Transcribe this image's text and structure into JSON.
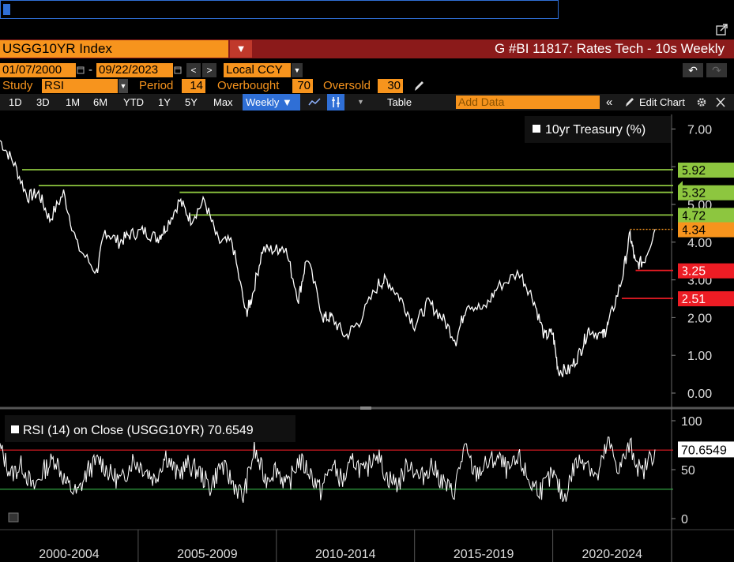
{
  "command_line": {
    "value": ""
  },
  "header": {
    "ticker": "USGG10YR Index",
    "title": "G #BI 11817: Rates Tech - 10s Weekly",
    "start_date": "01/07/2000",
    "end_date": "09/22/2023",
    "date_sep": "-",
    "currency": "Local CCY"
  },
  "study_row": {
    "study_label": "Study",
    "study_value": "RSI",
    "period_label": "Period",
    "period_value": "14",
    "overbought_label": "Overbought",
    "overbought_value": "70",
    "oversold_label": "Oversold",
    "oversold_value": "30"
  },
  "toolbar": {
    "ranges": [
      "1D",
      "3D",
      "1M",
      "6M",
      "YTD",
      "1Y",
      "5Y",
      "Max"
    ],
    "frequency": "Weekly ▼",
    "table_label": "Table",
    "add_data_placeholder": "Add Data",
    "edit_chart_label": "Edit Chart"
  },
  "icons": {
    "popout": "popout-icon",
    "undo": "undo-icon",
    "redo": "redo-icon",
    "pencil": "pencil-icon",
    "settings": "gear-icon",
    "line_type": "line-chart-icon",
    "crosshair": "crosshair-icon"
  },
  "colors": {
    "brand_orange": "#f7941d",
    "title_bar": "#8b1a1a",
    "resistance": "#8dc63f",
    "support": "#ed1c24",
    "price_line": "#ffffff",
    "rsi_overbought": "#ed1c24",
    "rsi_oversold": "#39b54a"
  },
  "chart_data": [
    {
      "type": "line",
      "legend": [
        "10yr Treasury (%)"
      ],
      "legend_position": "top-right",
      "ylim": [
        0,
        7.5
      ],
      "y_ticks": [
        "0.00",
        "1.00",
        "2.00",
        "3.00",
        "4.00",
        "5.00",
        "6.00",
        "7.00"
      ],
      "x_labels": [
        "2000-2004",
        "2005-2009",
        "2010-2014",
        "2015-2019",
        "2020-2024"
      ],
      "series": [
        {
          "name": "10yr Treasury (%)",
          "x": [
            2000.0,
            2000.5,
            2001.0,
            2001.4,
            2001.8,
            2002.3,
            2002.8,
            2003.5,
            2003.8,
            2004.3,
            2004.7,
            2005.2,
            2005.7,
            2006.0,
            2006.5,
            2006.9,
            2007.4,
            2007.9,
            2008.4,
            2008.9,
            2009.1,
            2009.5,
            2010.0,
            2010.3,
            2010.8,
            2011.1,
            2011.7,
            2012.0,
            2012.5,
            2013.0,
            2013.7,
            2014.0,
            2014.5,
            2015.0,
            2015.5,
            2016.0,
            2016.5,
            2016.9,
            2017.5,
            2018.0,
            2018.8,
            2019.3,
            2019.7,
            2020.0,
            2020.2,
            2020.6,
            2021.0,
            2021.3,
            2021.8,
            2022.0,
            2022.5,
            2022.8,
            2023.0,
            2023.3,
            2023.7
          ],
          "values": [
            6.7,
            6.1,
            5.2,
            5.3,
            4.6,
            5.3,
            3.9,
            3.2,
            4.3,
            4.0,
            4.2,
            4.3,
            4.1,
            4.4,
            5.1,
            4.6,
            5.1,
            4.0,
            4.0,
            2.1,
            2.5,
            3.8,
            3.8,
            3.9,
            2.5,
            3.6,
            2.0,
            2.0,
            1.5,
            1.9,
            2.9,
            3.0,
            2.5,
            1.8,
            2.4,
            2.0,
            1.4,
            2.4,
            2.2,
            2.8,
            3.2,
            2.5,
            1.5,
            1.6,
            0.6,
            0.6,
            1.1,
            1.7,
            1.5,
            1.8,
            3.0,
            4.2,
            3.4,
            3.5,
            4.34
          ]
        }
      ],
      "annotations": [
        {
          "kind": "resistance",
          "value": 5.92,
          "label": "5.92",
          "start": 2000.8
        },
        {
          "kind": "resistance",
          "value": 5.5,
          "label": "",
          "start": 2001.4
        },
        {
          "kind": "resistance",
          "value": 5.32,
          "label": "5.32",
          "start": 2006.5
        },
        {
          "kind": "resistance",
          "value": 4.72,
          "label": "4.72",
          "start": 2006.9
        },
        {
          "kind": "last",
          "value": 4.34,
          "label": "4.34",
          "start": 2022.8
        },
        {
          "kind": "support",
          "value": 3.25,
          "label": "3.25",
          "start": 2023.0
        },
        {
          "kind": "support",
          "value": 2.51,
          "label": "2.51",
          "start": 2022.5
        }
      ]
    },
    {
      "type": "line",
      "legend": [
        "RSI (14)  on Close (USGG10YR) 70.6549"
      ],
      "ylim": [
        0,
        100
      ],
      "y_ticks": [
        "0",
        "50",
        "100"
      ],
      "overbought": 70,
      "oversold": 30,
      "last_label": "70.6549",
      "series": [
        {
          "name": "RSI (14)  on Close (USGG10YR) 70.6549",
          "x": [
            2000.0,
            2000.4,
            2000.8,
            2001.2,
            2001.6,
            2002.0,
            2002.4,
            2002.8,
            2003.2,
            2003.6,
            2004.0,
            2004.4,
            2004.8,
            2005.2,
            2005.6,
            2006.0,
            2006.4,
            2006.8,
            2007.2,
            2007.6,
            2008.0,
            2008.4,
            2008.8,
            2009.2,
            2009.6,
            2010.0,
            2010.4,
            2010.8,
            2011.2,
            2011.6,
            2012.0,
            2012.4,
            2012.8,
            2013.2,
            2013.6,
            2014.0,
            2014.4,
            2014.8,
            2015.2,
            2015.6,
            2016.0,
            2016.4,
            2016.8,
            2017.2,
            2017.6,
            2018.0,
            2018.4,
            2018.8,
            2019.2,
            2019.6,
            2020.0,
            2020.4,
            2020.8,
            2021.2,
            2021.6,
            2022.0,
            2022.4,
            2022.8,
            2023.2,
            2023.7
          ],
          "values": [
            72,
            45,
            55,
            30,
            50,
            62,
            35,
            25,
            50,
            60,
            45,
            38,
            60,
            52,
            40,
            65,
            45,
            55,
            48,
            32,
            55,
            38,
            22,
            70,
            40,
            52,
            32,
            60,
            48,
            28,
            55,
            38,
            60,
            45,
            70,
            42,
            35,
            58,
            40,
            55,
            38,
            25,
            72,
            45,
            55,
            62,
            48,
            60,
            35,
            30,
            45,
            20,
            55,
            62,
            40,
            78,
            50,
            75,
            45,
            70.65
          ]
        }
      ]
    }
  ]
}
